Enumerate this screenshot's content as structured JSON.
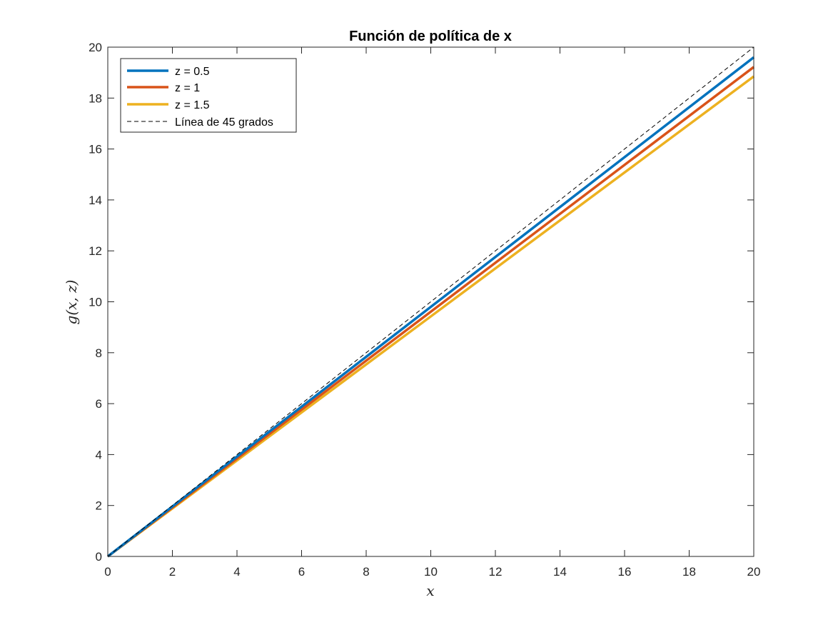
{
  "chart_data": {
    "type": "line",
    "title": "Función de política de x",
    "xlabel": "x",
    "ylabel": "g(x, z)",
    "xlim": [
      0,
      20
    ],
    "ylim": [
      0,
      20
    ],
    "x_ticks": [
      0,
      2,
      4,
      6,
      8,
      10,
      12,
      14,
      16,
      18,
      20
    ],
    "y_ticks": [
      0,
      2,
      4,
      6,
      8,
      10,
      12,
      14,
      16,
      18,
      20
    ],
    "grid": false,
    "legend_position": "top-left",
    "series": [
      {
        "name": "z = 0.5",
        "color": "#0072BD",
        "style": "solid",
        "x": [
          0,
          20
        ],
        "y": [
          0,
          19.6
        ]
      },
      {
        "name": "z = 1",
        "color": "#D95319",
        "style": "solid",
        "x": [
          0,
          20
        ],
        "y": [
          0,
          19.22
        ]
      },
      {
        "name": "z = 1.5",
        "color": "#EDB120",
        "style": "solid",
        "x": [
          0,
          20
        ],
        "y": [
          0,
          18.85
        ]
      },
      {
        "name": "Línea de 45 grados",
        "color": "#000000",
        "style": "dashed",
        "x": [
          0,
          20
        ],
        "y": [
          0,
          20
        ]
      }
    ]
  }
}
